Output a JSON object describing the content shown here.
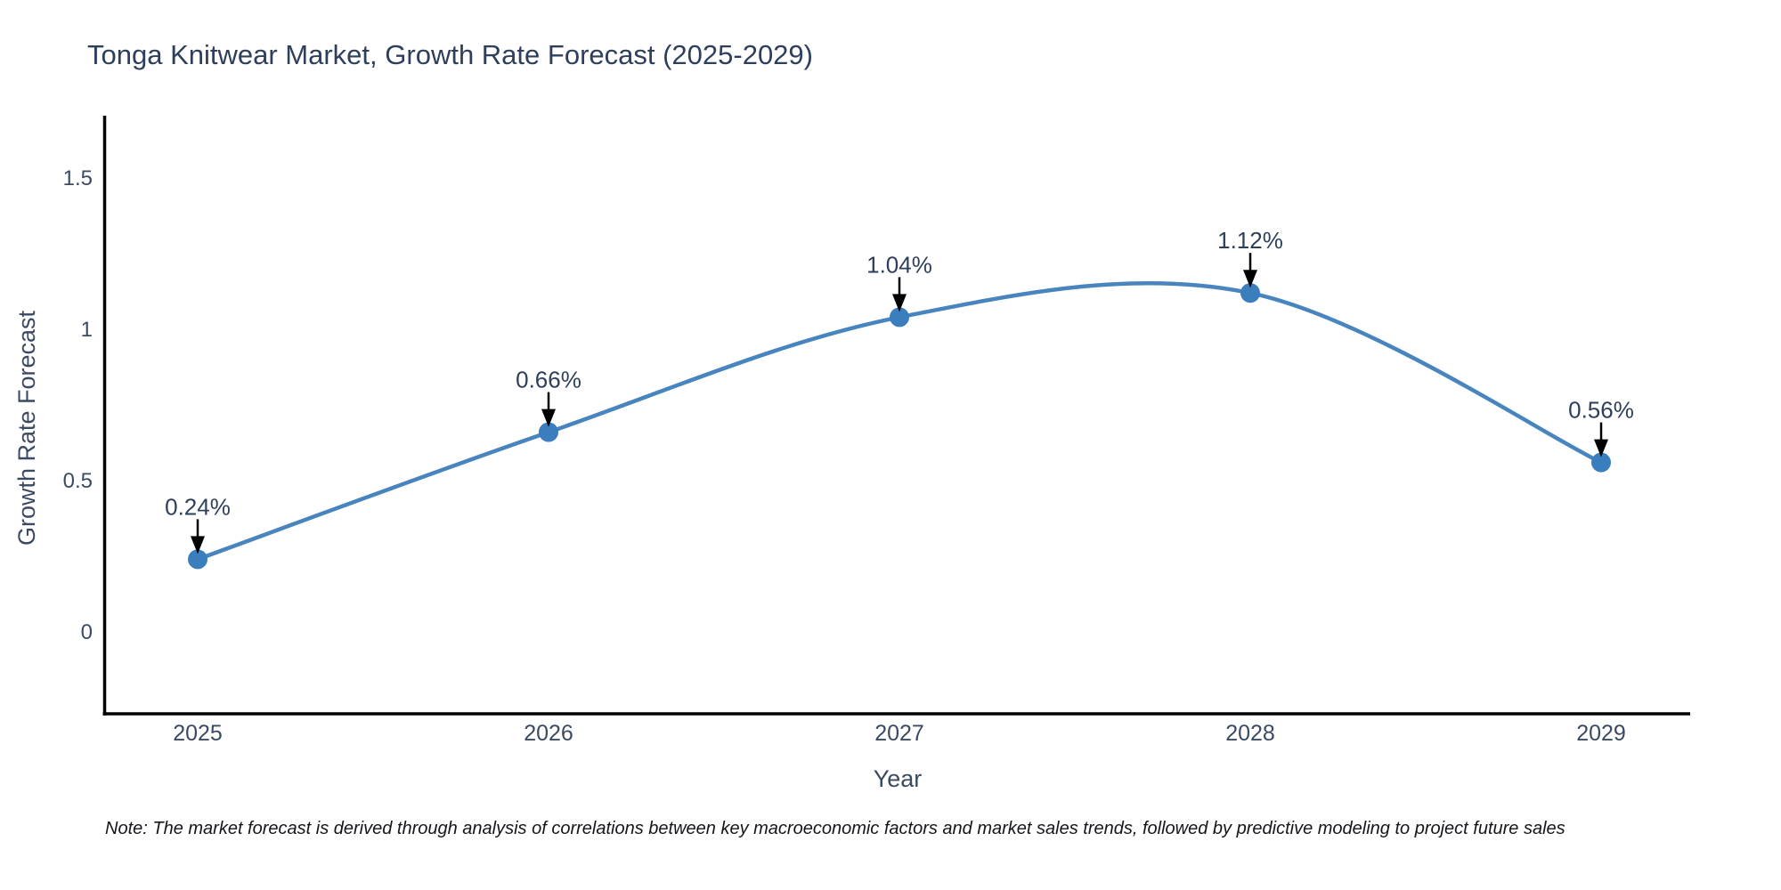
{
  "page": {
    "title": "Tonga Knitwear Market, Growth Rate Forecast (2025-2029)",
    "note": "Note: The market forecast is derived through analysis of correlations between key macroeconomic factors and market sales trends, followed by predictive modeling to project future sales"
  },
  "chart_data": {
    "type": "line",
    "title": "Tonga Knitwear Market, Growth Rate Forecast (2025-2029)",
    "xlabel": "Year",
    "ylabel": "Growth Rate Forecast",
    "categories": [
      "2025",
      "2026",
      "2027",
      "2028",
      "2029"
    ],
    "series": [
      {
        "name": "Growth Rate Forecast",
        "values": [
          0.24,
          0.66,
          1.04,
          1.12,
          0.56
        ],
        "point_labels": [
          "0.24%",
          "0.66%",
          "1.04%",
          "1.12%",
          "0.56%"
        ]
      }
    ],
    "y_ticks": [
      0,
      0.5,
      1,
      1.5
    ],
    "y_tick_labels": [
      "0",
      "0.5",
      "1",
      "1.5"
    ],
    "ylim": [
      -0.27,
      1.72
    ],
    "grid": false,
    "legend_position": "none",
    "line_style": "smooth-spline",
    "annotation_style": "label-with-down-arrow",
    "colors": {
      "line": "#4885be",
      "marker": "#3a7ebe",
      "axis": "#000000",
      "arrow": "#000000",
      "title_text": "#2e3f5c",
      "tick_text": "#3b4a63",
      "annotation_text": "#2e3f5c",
      "note_text": "#14161a",
      "background": "#ffffff"
    }
  }
}
